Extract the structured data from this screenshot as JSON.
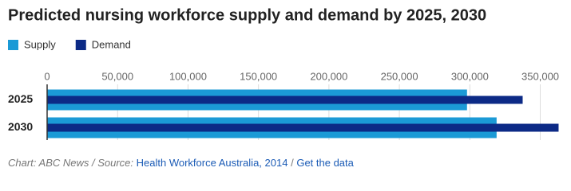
{
  "chart_data": {
    "type": "bar",
    "orientation": "horizontal",
    "title": "Predicted nursing workforce supply and demand by 2025, 2030",
    "categories": [
      "2025",
      "2030"
    ],
    "series": [
      {
        "name": "Supply",
        "color": "#1b9ad6",
        "values": [
          298000,
          319000
        ]
      },
      {
        "name": "Demand",
        "color": "#0c2a86",
        "values": [
          337500,
          363000
        ]
      }
    ],
    "xlim": [
      0,
      365000
    ],
    "xticks": [
      0,
      {
        "value": 50000,
        "label": "50,000"
      },
      {
        "value": 100000,
        "label": "100,000"
      },
      {
        "value": 150000,
        "label": "150,000"
      },
      {
        "value": 200000,
        "label": "200,000"
      },
      {
        "value": 250000,
        "label": "250,000"
      },
      {
        "value": 300000,
        "label": "300,000"
      },
      {
        "value": 350000,
        "label": "350,000"
      }
    ],
    "grid": true,
    "credit": "Chart: ABC News / Source:",
    "source_link": "Health Workforce Australia, 2014",
    "separator": "/",
    "data_link": "Get the data"
  }
}
